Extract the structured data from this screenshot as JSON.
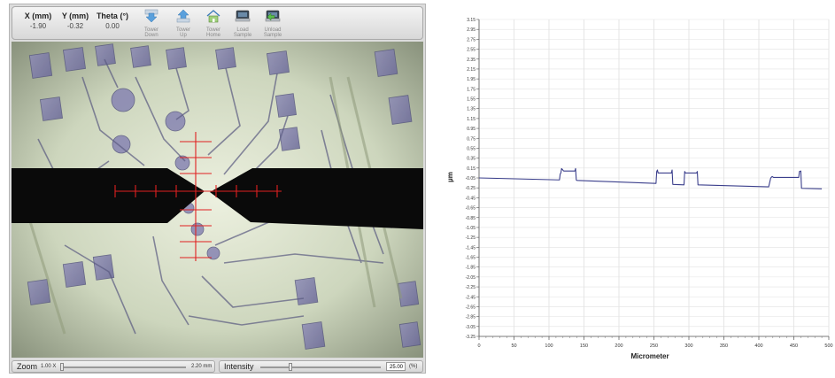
{
  "stage": {
    "x": {
      "label": "X (mm)",
      "value": "-1.90"
    },
    "y": {
      "label": "Y (mm)",
      "value": "-0.32"
    },
    "theta": {
      "label": "Theta (°)",
      "value": "0.00"
    }
  },
  "toolbar": {
    "buttons": [
      {
        "line1": "Tower",
        "line2": "Down",
        "icon": "arrow-down-icon"
      },
      {
        "line1": "Tower",
        "line2": "Up",
        "icon": "arrow-up-icon"
      },
      {
        "line1": "Tower",
        "line2": "Home",
        "icon": "home-icon"
      },
      {
        "line1": "Load",
        "line2": "Sample",
        "icon": "load-sample-icon"
      },
      {
        "line1": "Unload",
        "line2": "Sample",
        "icon": "unload-sample-icon"
      }
    ]
  },
  "footer": {
    "zoom": {
      "label": "Zoom",
      "min": "1.00 X",
      "max": "2.20 mm",
      "level": 0.0
    },
    "intensity": {
      "label": "Intensity",
      "value": "25.00",
      "unit": "(%)",
      "level": 0.25
    }
  },
  "colors": {
    "trace": "#3b3f8c",
    "crosshair": "#e02020",
    "probe": "#0a0a0a"
  },
  "chart_data": {
    "type": "line",
    "xlabel": "Micrometer",
    "ylabel": "µm",
    "xlim": [
      0,
      500
    ],
    "ylim": [
      -3.25,
      3.15
    ],
    "x_ticks": [
      "0",
      "50",
      "100",
      "150",
      "200",
      "250",
      "300",
      "350",
      "400",
      "450",
      "500"
    ],
    "y_ticks": [
      "3.15",
      "2.95",
      "2.75",
      "2.55",
      "2.35",
      "2.15",
      "1.95",
      "1.75",
      "1.55",
      "1.35",
      "1.15",
      "0.95",
      "0.75",
      "0.55",
      "0.35",
      "0.15",
      "-0.05",
      "-0.25",
      "-0.45",
      "-0.65",
      "-0.85",
      "-1.05",
      "-1.25",
      "-1.45",
      "-1.65",
      "-1.85",
      "-2.05",
      "-2.25",
      "-2.45",
      "-2.65",
      "-2.85",
      "-3.05",
      "-3.25"
    ],
    "grid": true,
    "series": [
      {
        "x": [
          0,
          115,
          116,
          117,
          118,
          121,
          123,
          124,
          137,
          138,
          139,
          140,
          253,
          254,
          255,
          256,
          275,
          276,
          277,
          293,
          294,
          295,
          296,
          311,
          312,
          313,
          414,
          417,
          419,
          421,
          457,
          458,
          460,
          461,
          490
        ],
        "y": [
          -0.05,
          -0.09,
          0.03,
          0.05,
          0.14,
          0.09,
          0.09,
          0.09,
          0.09,
          0.14,
          -0.09,
          -0.1,
          -0.16,
          0.08,
          0.11,
          0.05,
          0.05,
          0.11,
          -0.18,
          -0.19,
          0.08,
          0.05,
          0.05,
          0.05,
          0.08,
          -0.19,
          -0.23,
          -0.05,
          -0.02,
          -0.04,
          -0.04,
          0.08,
          0.09,
          -0.26,
          -0.27
        ]
      }
    ]
  }
}
